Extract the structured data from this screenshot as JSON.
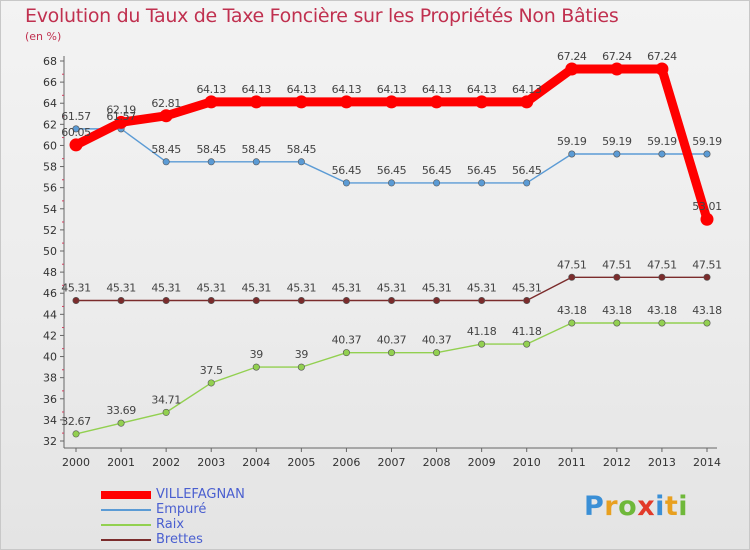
{
  "title": "Evolution du Taux de Taxe Foncière sur les Propriétés Non Bâties",
  "unit_label": "(en %)",
  "logo": {
    "text": "Proxiti",
    "letters": [
      {
        "ch": "P",
        "color": "#3a8fd6"
      },
      {
        "ch": "r",
        "color": "#e8a020"
      },
      {
        "ch": "o",
        "color": "#6fb83a"
      },
      {
        "ch": "x",
        "color": "#e23a2a"
      },
      {
        "ch": "i",
        "color": "#3a8fd6"
      },
      {
        "ch": "t",
        "color": "#e8a020"
      },
      {
        "ch": "i",
        "color": "#6fb83a"
      }
    ]
  },
  "chart_data": {
    "type": "line",
    "title": "Evolution du Taux de Taxe Foncière sur les Propriétés Non Bâties",
    "ylabel": "(en %)",
    "xlabel": "",
    "x": [
      "2000",
      "2001",
      "2002",
      "2003",
      "2004",
      "2005",
      "2006",
      "2007",
      "2008",
      "2009",
      "2010",
      "2011",
      "2012",
      "2013",
      "2014"
    ],
    "ylim": [
      32,
      68
    ],
    "yticks": [
      32,
      34,
      36,
      38,
      40,
      42,
      44,
      46,
      48,
      50,
      52,
      54,
      56,
      58,
      60,
      62,
      64,
      66,
      68
    ],
    "grid": false,
    "legend_position": "bottom-left",
    "series": [
      {
        "name": "VILLEFAGNAN",
        "color": "#ff0000",
        "emphasis": true,
        "values": [
          60.05,
          62.19,
          62.81,
          64.13,
          64.13,
          64.13,
          64.13,
          64.13,
          64.13,
          64.13,
          64.13,
          67.24,
          67.24,
          67.24,
          53.01
        ],
        "labels": [
          "60.05",
          "62.19",
          "62.81",
          "64.13",
          "64.13",
          "64.13",
          "64.13",
          "64.13",
          "64.13",
          "64.13",
          "64.13",
          "67.24",
          "67.24",
          "67.24",
          "53.01"
        ]
      },
      {
        "name": "Empuré",
        "color": "#5b9bd5",
        "emphasis": false,
        "values": [
          61.57,
          61.57,
          58.45,
          58.45,
          58.45,
          58.45,
          56.45,
          56.45,
          56.45,
          56.45,
          56.45,
          59.19,
          59.19,
          59.19,
          59.19
        ],
        "labels": [
          "61.57",
          "61.57",
          "58.45",
          "58.45",
          "58.45",
          "58.45",
          "56.45",
          "56.45",
          "56.45",
          "56.45",
          "56.45",
          "59.19",
          "59.19",
          "59.19",
          "59.19"
        ]
      },
      {
        "name": "Raix",
        "color": "#92d050",
        "emphasis": false,
        "values": [
          32.67,
          33.69,
          34.71,
          37.5,
          39,
          39,
          40.37,
          40.37,
          40.37,
          41.18,
          41.18,
          43.18,
          43.18,
          43.18,
          43.18
        ],
        "labels": [
          "32.67",
          "33.69",
          "34.71",
          "37.5",
          "39",
          "39",
          "40.37",
          "40.37",
          "40.37",
          "41.18",
          "41.18",
          "43.18",
          "43.18",
          "43.18",
          "43.18"
        ]
      },
      {
        "name": "Brettes",
        "color": "#7b2c2c",
        "emphasis": false,
        "values": [
          45.31,
          45.31,
          45.31,
          45.31,
          45.31,
          45.31,
          45.31,
          45.31,
          45.31,
          45.31,
          45.31,
          47.51,
          47.51,
          47.51,
          47.51
        ],
        "labels": [
          "45.31",
          "45.31",
          "45.31",
          "45.31",
          "45.31",
          "45.31",
          "45.31",
          "45.31",
          "45.31",
          "45.31",
          "45.31",
          "47.51",
          "47.51",
          "47.51",
          "47.51"
        ]
      }
    ]
  }
}
